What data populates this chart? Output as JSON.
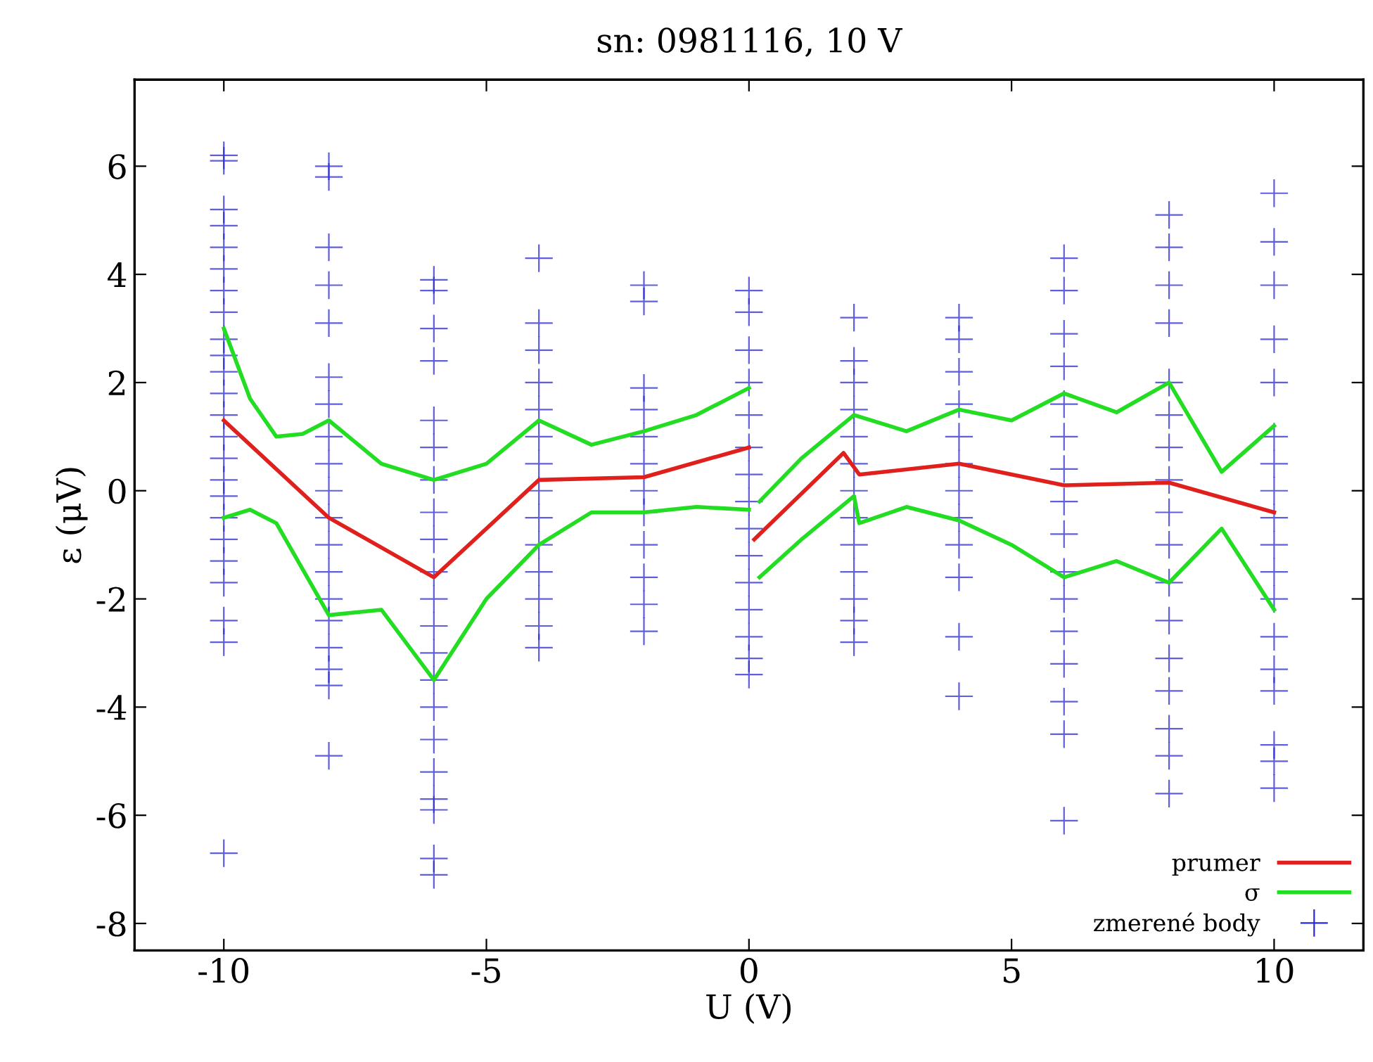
{
  "chart_data": {
    "type": "line",
    "title": "sn: 0981116, 10 V",
    "xlabel": "U (V)",
    "ylabel": "ε (μV)",
    "xlim": [
      -11.7,
      11.7
    ],
    "ylim": [
      -8.5,
      7.6
    ],
    "xticks": [
      -10,
      -5,
      0,
      5,
      10
    ],
    "yticks": [
      -8,
      -6,
      -4,
      -2,
      0,
      2,
      4,
      6
    ],
    "grid": false,
    "legend": "bottom right",
    "series": [
      {
        "name": "prumer",
        "color": "#e0201c",
        "line_style": "solid",
        "marker": "none",
        "x": [
          -10,
          -8,
          -6,
          -4,
          -2,
          0,
          null,
          0.1,
          1.8,
          2.1,
          4,
          6,
          8,
          10
        ],
        "values": [
          1.3,
          -0.5,
          -1.6,
          0.2,
          0.25,
          0.8,
          null,
          -0.9,
          0.7,
          0.3,
          0.5,
          0.1,
          0.15,
          -0.4
        ]
      },
      {
        "name": "σ",
        "color": "#22dd22",
        "line_style": "solid",
        "marker": "none",
        "x": [
          -10,
          -9.5,
          -9,
          -8.5,
          -8,
          -7,
          -6,
          -5,
          -4,
          -3,
          -2,
          -1,
          0,
          null,
          0.2,
          1,
          2,
          3,
          4,
          5,
          6,
          7,
          8,
          9,
          10,
          null,
          -10,
          -9.5,
          -9,
          -8,
          -7,
          -6,
          -5,
          -4,
          -3,
          -2,
          -1,
          0,
          null,
          0.2,
          1,
          2,
          2.1,
          3,
          4,
          5,
          6,
          7,
          8,
          9,
          10
        ],
        "values": [
          3.0,
          1.7,
          1.0,
          1.05,
          1.3,
          0.5,
          0.2,
          0.5,
          1.3,
          0.85,
          1.1,
          1.4,
          1.9,
          null,
          -0.2,
          0.6,
          1.4,
          1.1,
          1.5,
          1.3,
          1.8,
          1.45,
          2.0,
          0.35,
          1.2,
          null,
          -0.5,
          -0.35,
          -0.6,
          -2.3,
          -2.2,
          -3.5,
          -2.0,
          -1.0,
          -0.4,
          -0.4,
          -0.3,
          -0.35,
          null,
          -1.6,
          -0.9,
          -0.1,
          -0.6,
          -0.3,
          -0.55,
          -1.0,
          -1.6,
          -1.3,
          -1.7,
          -0.7,
          -2.2
        ]
      },
      {
        "name": "zmerené body",
        "type": "scatter",
        "color": "#2a2ad0",
        "marker": "cross",
        "x": [
          -10,
          -10,
          -10,
          -10,
          -10,
          -10,
          -10,
          -10,
          -10,
          -10,
          -10,
          -10,
          -10,
          -10,
          -10,
          -10,
          -10,
          -10,
          -10,
          -10,
          -10,
          -10,
          -10,
          -10,
          -8,
          -8,
          -8,
          -8,
          -8,
          -8,
          -8,
          -8,
          -8,
          -8,
          -8,
          -8,
          -8,
          -8,
          -8,
          -8,
          -8,
          -8,
          -8,
          -6,
          -6,
          -6,
          -6,
          -6,
          -6,
          -6,
          -6,
          -6,
          -6,
          -6,
          -6,
          -6,
          -6,
          -6,
          -6,
          -6,
          -6,
          -6,
          -6,
          -6,
          -4,
          -4,
          -4,
          -4,
          -4,
          -4,
          -4,
          -4,
          -4,
          -4,
          -4,
          -4,
          -4,
          -4,
          -2,
          -2,
          -2,
          -2,
          -2,
          -2,
          -2,
          -2,
          -2,
          -2,
          -2,
          -2,
          0,
          0,
          0,
          0,
          0,
          0,
          0,
          0,
          0,
          0,
          0,
          0,
          0,
          0,
          0,
          2,
          2,
          2,
          2,
          2,
          2,
          2,
          2,
          2,
          2,
          2,
          2,
          2,
          4,
          4,
          4,
          4,
          4,
          4,
          4,
          4,
          4,
          4,
          4,
          4,
          6,
          6,
          6,
          6,
          6,
          6,
          6,
          6,
          6,
          6,
          6,
          6,
          6,
          6,
          6,
          6,
          8,
          8,
          8,
          8,
          8,
          8,
          8,
          8,
          8,
          8,
          8,
          8,
          8,
          8,
          8,
          8,
          8,
          10,
          10,
          10,
          10,
          10,
          10,
          10,
          10,
          10,
          10,
          10,
          10,
          10,
          10,
          10,
          10,
          10,
          10
        ],
        "values": [
          6.1,
          6.2,
          5.2,
          4.9,
          4.5,
          4.1,
          3.7,
          3.3,
          2.8,
          2.5,
          2.2,
          1.8,
          1.4,
          1.0,
          0.6,
          0.2,
          -0.1,
          -0.5,
          -0.9,
          -1.3,
          -1.7,
          -2.4,
          -2.8,
          -6.7,
          6.0,
          5.8,
          4.5,
          3.8,
          3.1,
          2.1,
          1.6,
          1.0,
          0.5,
          0.0,
          -0.5,
          -1.0,
          -1.5,
          -2.0,
          -2.4,
          -2.9,
          -3.3,
          -3.6,
          -4.9,
          3.9,
          3.7,
          3.0,
          2.4,
          1.3,
          0.8,
          0.2,
          -0.4,
          -0.9,
          -1.5,
          -2.0,
          -2.5,
          -3.0,
          -3.5,
          -4.0,
          -4.6,
          -5.2,
          -5.7,
          -5.9,
          -6.8,
          -7.1,
          4.3,
          3.1,
          2.6,
          2.0,
          1.5,
          1.0,
          0.5,
          0.0,
          -0.5,
          -1.0,
          -1.5,
          -2.0,
          -2.5,
          -2.9,
          3.8,
          3.5,
          1.9,
          1.5,
          1.0,
          0.5,
          0.0,
          -0.4,
          -1.0,
          -1.6,
          -2.1,
          -2.6,
          3.7,
          3.3,
          2.6,
          2.0,
          1.4,
          0.8,
          0.3,
          -0.2,
          -0.7,
          -1.2,
          -1.7,
          -2.2,
          -2.7,
          -3.1,
          -3.4,
          3.2,
          2.4,
          2.0,
          1.5,
          1.0,
          0.5,
          0.0,
          -0.5,
          -1.0,
          -1.5,
          -2.0,
          -2.4,
          -2.8,
          3.2,
          2.8,
          2.2,
          1.6,
          1.0,
          0.5,
          0.0,
          -0.5,
          -1.0,
          -1.6,
          -2.7,
          -3.8,
          4.3,
          3.7,
          2.9,
          2.3,
          1.6,
          1.0,
          0.4,
          -0.2,
          -0.8,
          -1.5,
          -2.0,
          -2.6,
          -3.2,
          -3.9,
          -4.5,
          -6.1,
          5.1,
          4.5,
          3.8,
          3.1,
          2.0,
          1.4,
          0.8,
          0.2,
          -0.4,
          -1.0,
          -1.7,
          -2.4,
          -3.1,
          -3.7,
          -4.4,
          -4.9,
          -5.6,
          5.5,
          4.6,
          3.8,
          2.8,
          2.0,
          1.0,
          0.5,
          0.0,
          -0.5,
          -1.0,
          -1.5,
          -2.0,
          -2.7,
          -3.3,
          -3.7,
          -4.7,
          -5.0,
          -5.5
        ]
      }
    ]
  }
}
